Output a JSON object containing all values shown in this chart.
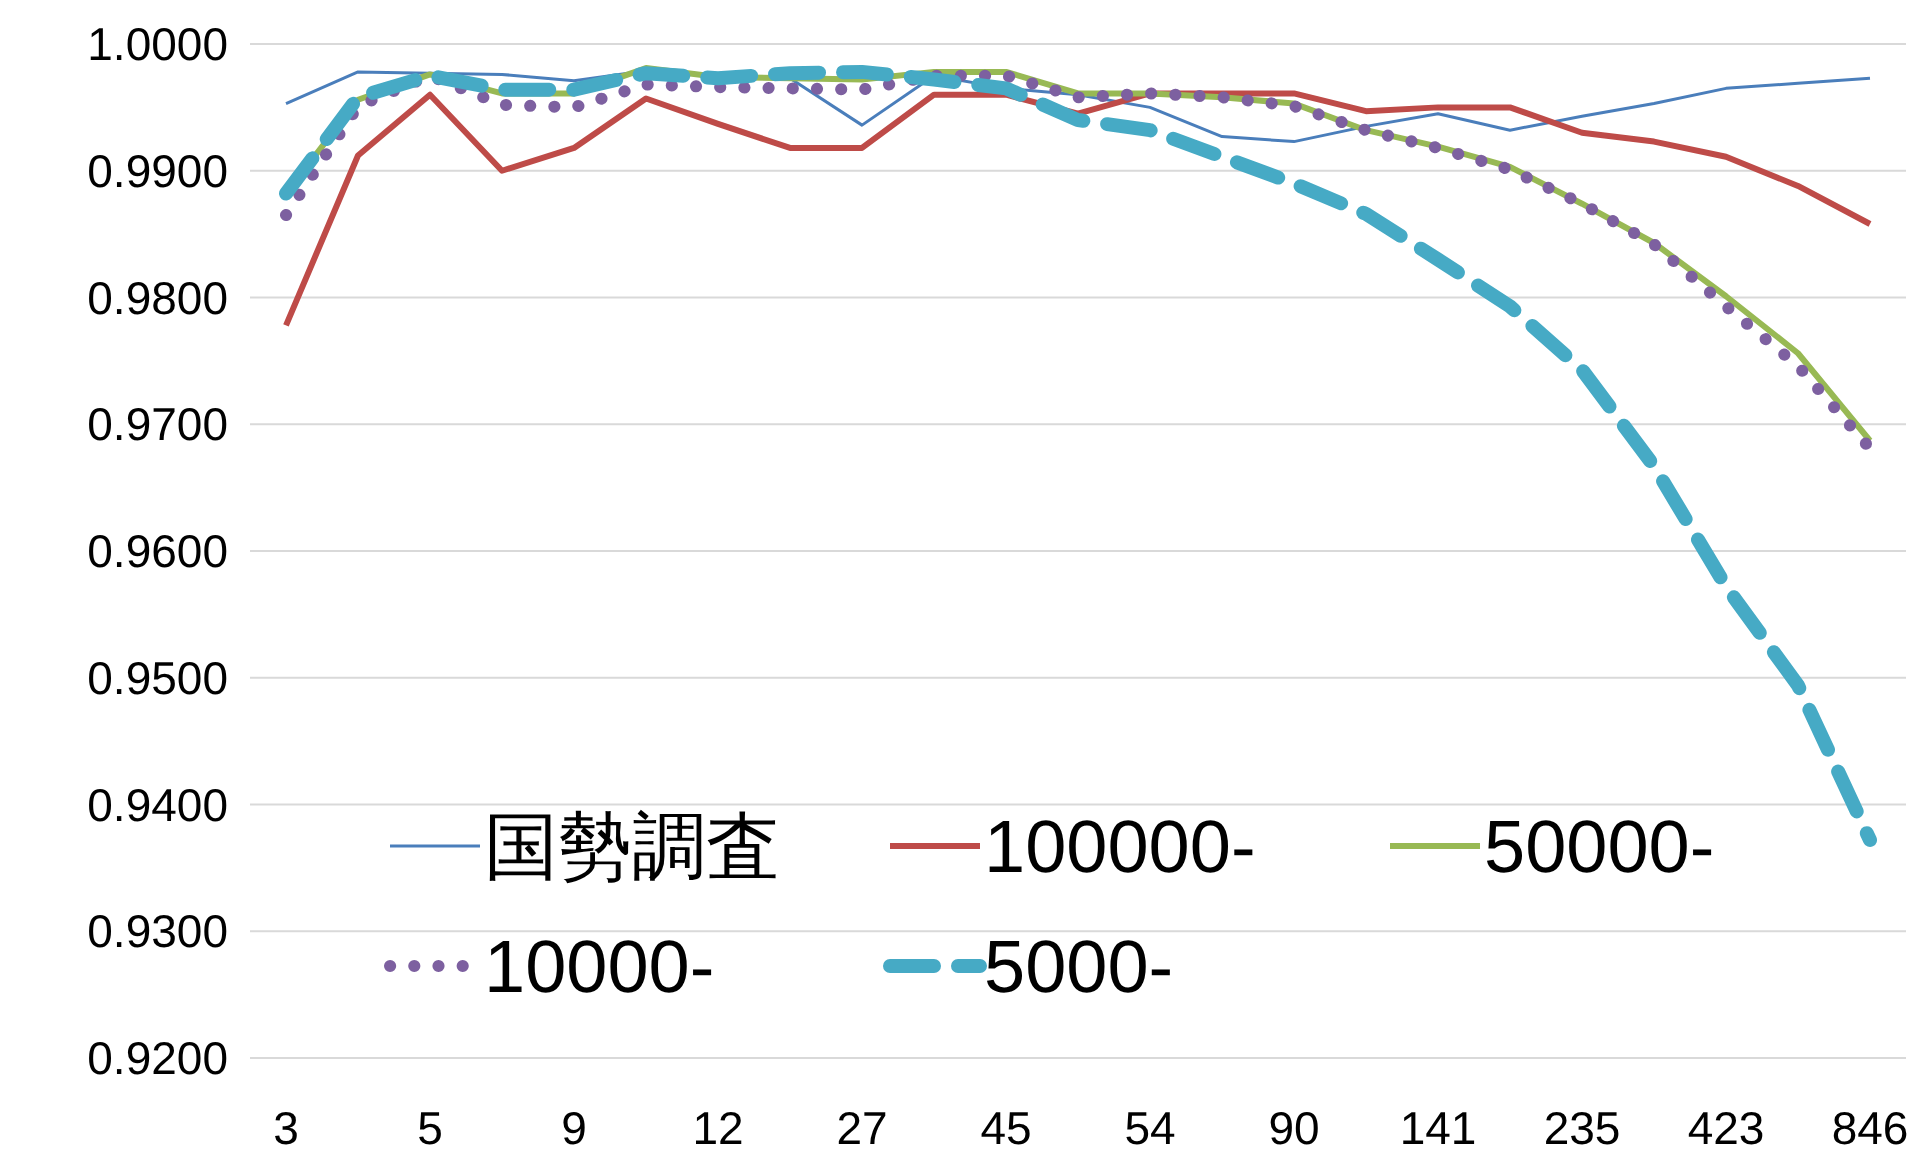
{
  "chart_data": {
    "type": "line",
    "categories": [
      "3",
      null,
      "5",
      null,
      "9",
      null,
      "12",
      null,
      "27",
      null,
      "45",
      null,
      "54",
      null,
      "90",
      null,
      "141",
      null,
      "235",
      null,
      "423",
      null,
      "846"
    ],
    "series": [
      {
        "name": "国勢調査",
        "color": "#4a7ebb",
        "line_style": "solid",
        "values": [
          0.9953,
          0.9978,
          0.9977,
          0.9976,
          0.9971,
          0.9979,
          0.9975,
          0.9973,
          0.9936,
          0.9975,
          0.9965,
          0.996,
          0.995,
          0.9927,
          0.9923,
          0.9935,
          0.9945,
          0.9932,
          0.9943,
          0.9953,
          0.9965,
          0.9969,
          0.9973
        ]
      },
      {
        "name": "100000-",
        "color": "#be4b48",
        "line_style": "solid",
        "values": [
          0.9778,
          0.9912,
          0.996,
          0.99,
          0.9918,
          0.9957,
          0.9937,
          0.9918,
          0.9918,
          0.996,
          0.996,
          0.9945,
          0.9961,
          0.9961,
          0.9961,
          0.9947,
          0.995,
          0.995,
          0.993,
          0.9923,
          0.9911,
          0.9888,
          0.9858
        ]
      },
      {
        "name": "50000-",
        "color": "#98b954",
        "line_style": "solid",
        "values": [
          0.9882,
          0.9956,
          0.9976,
          0.9961,
          0.9961,
          0.9981,
          0.9974,
          0.9973,
          0.9972,
          0.9978,
          0.9978,
          0.9961,
          0.9961,
          0.9958,
          0.9953,
          0.9932,
          0.9919,
          0.9903,
          0.9874,
          0.9843,
          0.9801,
          0.9756,
          0.9687
        ]
      },
      {
        "name": "10000-",
        "color": "#7d60a0",
        "line_style": "dotted",
        "values": [
          0.9865,
          0.9951,
          0.9975,
          0.9952,
          0.995,
          0.9968,
          0.9966,
          0.9965,
          0.9964,
          0.9975,
          0.9975,
          0.9958,
          0.9961,
          0.9958,
          0.9951,
          0.9932,
          0.9918,
          0.9901,
          0.9874,
          0.9842,
          0.9793,
          0.9746,
          0.9681
        ]
      },
      {
        "name": "5000-",
        "color": "#46aac5",
        "line_style": "dashed",
        "values": [
          0.9882,
          0.9958,
          0.9975,
          0.9964,
          0.9964,
          0.9977,
          0.9973,
          0.9977,
          0.9978,
          0.9972,
          0.9965,
          0.994,
          0.9932,
          0.9911,
          0.989,
          0.9866,
          0.983,
          0.9793,
          0.9743,
          0.9667,
          0.9572,
          0.9494,
          0.9372
        ]
      }
    ],
    "ylim": [
      0.92,
      1.0
    ],
    "yticks": [
      {
        "value": 0.92,
        "label": "0.9200"
      },
      {
        "value": 0.93,
        "label": "0.9300"
      },
      {
        "value": 0.94,
        "label": "0.9400"
      },
      {
        "value": 0.95,
        "label": "0.9500"
      },
      {
        "value": 0.96,
        "label": "0.9600"
      },
      {
        "value": 0.97,
        "label": "0.9700"
      },
      {
        "value": 0.98,
        "label": "0.9800"
      },
      {
        "value": 0.99,
        "label": "0.9900"
      },
      {
        "value": 1.0,
        "label": "1.0000"
      }
    ],
    "grid": "y",
    "legend": "bottom"
  }
}
